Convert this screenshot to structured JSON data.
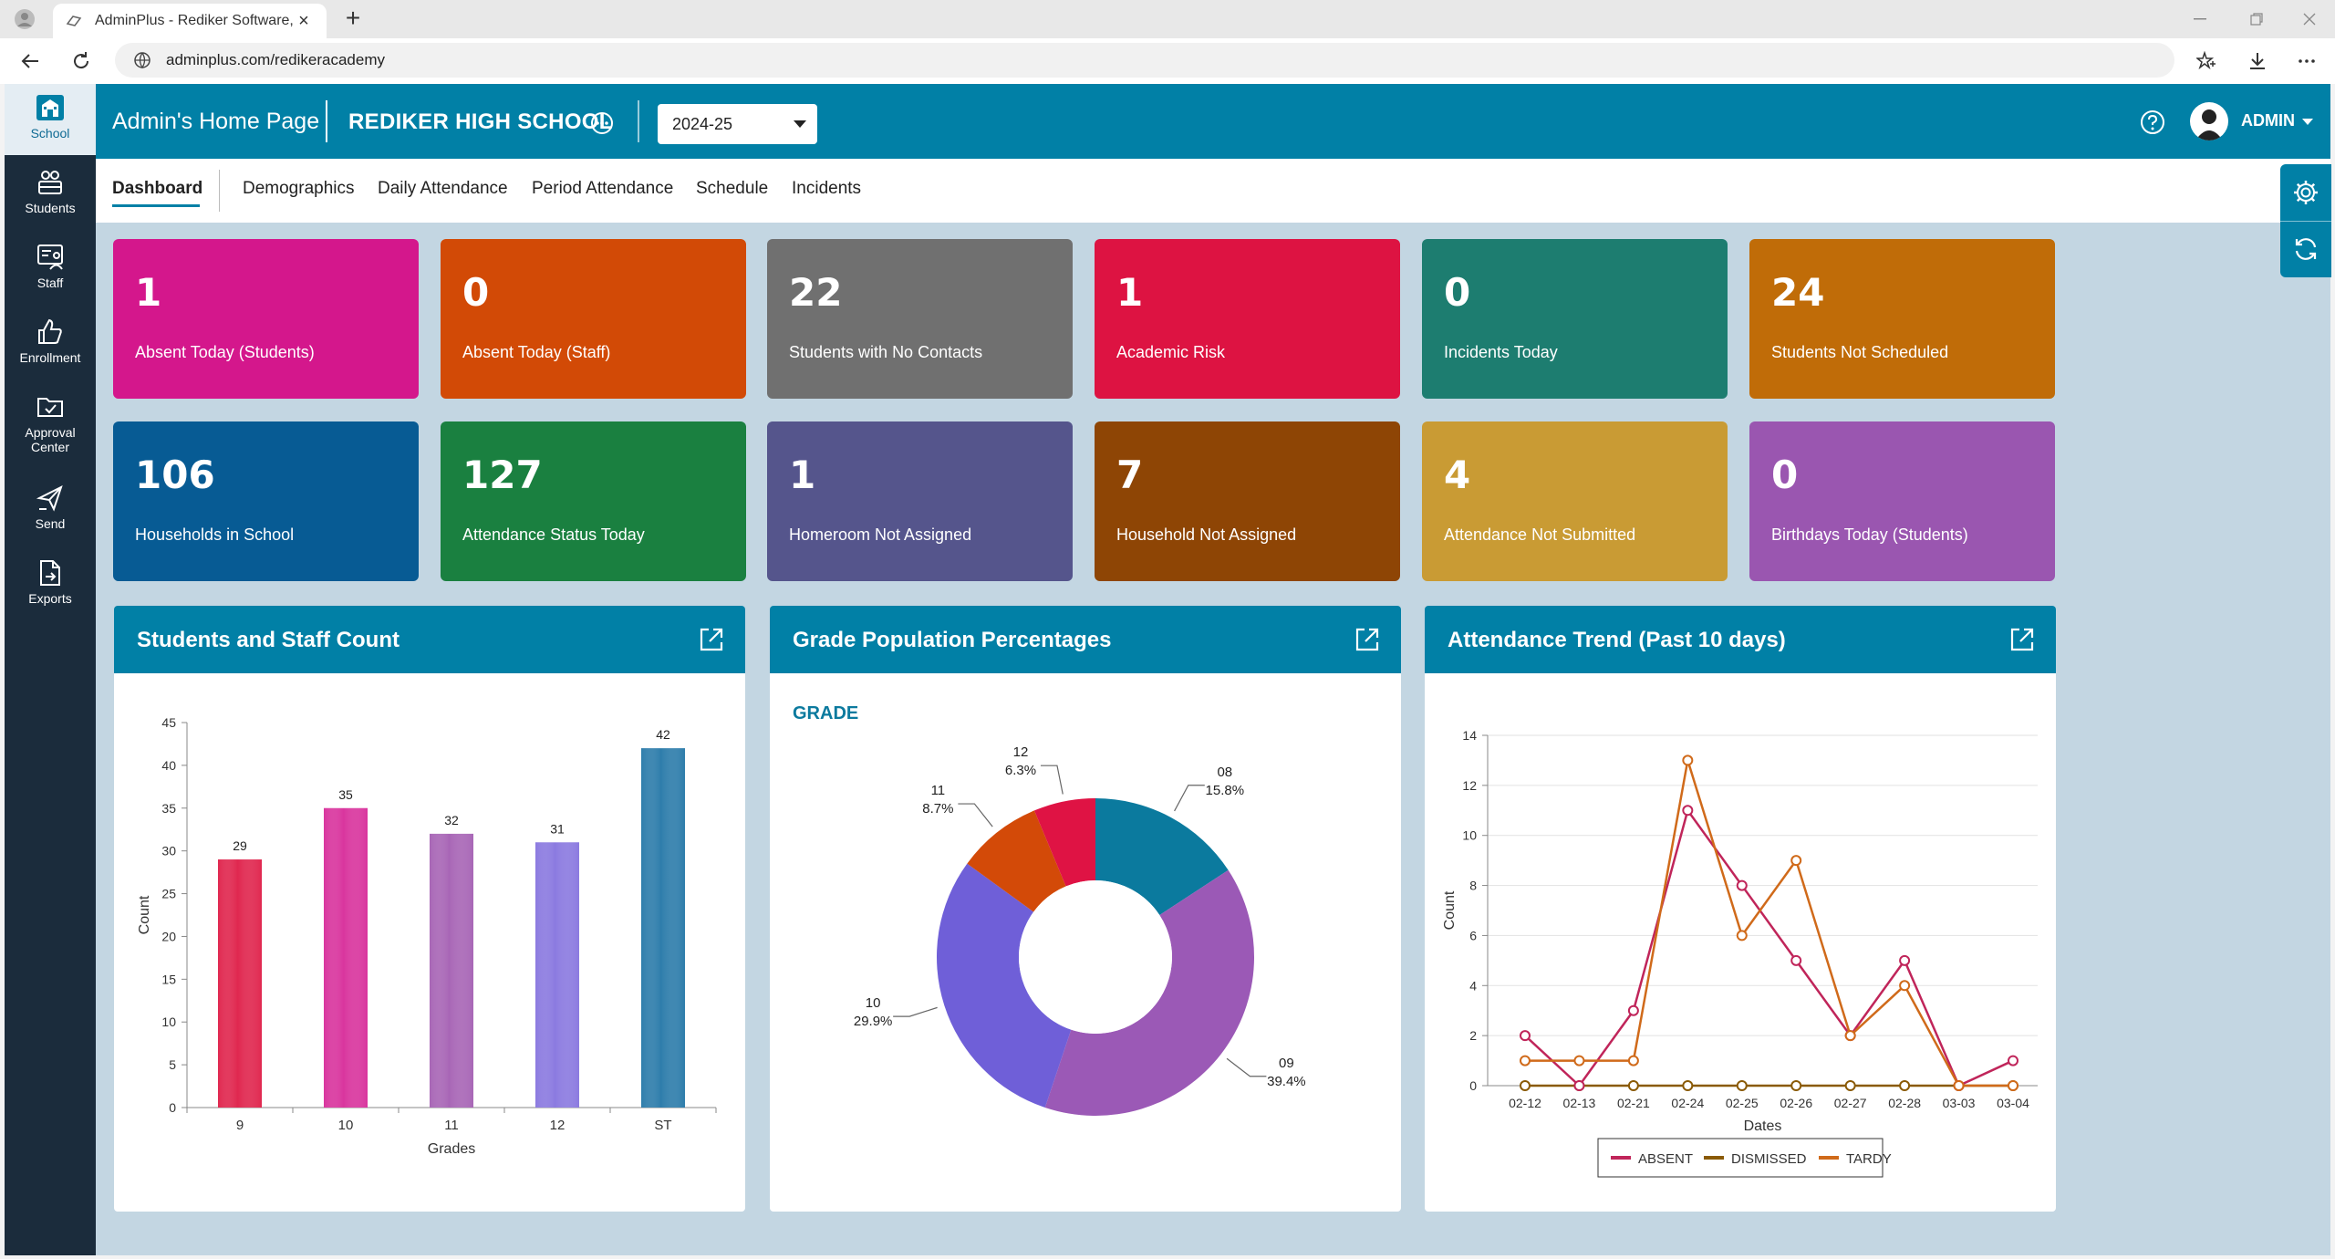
{
  "browser": {
    "tab_title": "AdminPlus - Rediker Software, Inc",
    "url": "adminplus.com/redikeracademy"
  },
  "left_nav": [
    {
      "id": "school",
      "label": "School"
    },
    {
      "id": "students",
      "label": "Students"
    },
    {
      "id": "staff",
      "label": "Staff"
    },
    {
      "id": "enrollment",
      "label": "Enrollment"
    },
    {
      "id": "approval",
      "label": "Approval Center"
    },
    {
      "id": "send",
      "label": "Send"
    },
    {
      "id": "exports",
      "label": "Exports"
    }
  ],
  "header": {
    "title": "Admin's Home Page",
    "school": "REDIKER HIGH SCHOOL",
    "year": "2024-25",
    "user": "ADMIN"
  },
  "tabs": [
    "Dashboard",
    "Demographics",
    "Daily Attendance",
    "Period Attendance",
    "Schedule",
    "Incidents"
  ],
  "tiles": [
    {
      "value": "1",
      "label": "Absent Today (Students)",
      "color": "#d4178c"
    },
    {
      "value": "0",
      "label": "Absent Today (Staff)",
      "color": "#d24a06"
    },
    {
      "value": "22",
      "label": "Students with No Contacts",
      "color": "#707070"
    },
    {
      "value": "1",
      "label": "Academic Risk",
      "color": "#dd1342"
    },
    {
      "value": "0",
      "label": "Incidents Today",
      "color": "#1d7d70"
    },
    {
      "value": "24",
      "label": "Students Not Scheduled",
      "color": "#c06c08"
    },
    {
      "value": "106",
      "label": "Households in School",
      "color": "#075b94"
    },
    {
      "value": "127",
      "label": "Attendance Status Today",
      "color": "#1a8040"
    },
    {
      "value": "1",
      "label": "Homeroom Not Assigned",
      "color": "#55558c"
    },
    {
      "value": "7",
      "label": "Household Not Assigned",
      "color": "#8e4505"
    },
    {
      "value": "4",
      "label": "Attendance Not Submitted",
      "color": "#c99b34"
    },
    {
      "value": "0",
      "label": "Birthdays Today (Students)",
      "color": "#9a56b0"
    }
  ],
  "panels": {
    "count": "Students and Staff Count",
    "grade": "Grade Population Percentages",
    "trend": "Attendance Trend (Past 10 days)"
  },
  "chart_data": [
    {
      "type": "bar",
      "title": "Students and Staff Count",
      "categories": [
        "9",
        "10",
        "11",
        "12",
        "ST"
      ],
      "values": [
        29,
        35,
        32,
        31,
        42
      ],
      "colors": [
        "#e0274f",
        "#d9359e",
        "#a866b6",
        "#8b7ae0",
        "#2e7dab"
      ],
      "xlabel": "Grades",
      "ylabel": "Count",
      "ylim": [
        0,
        45
      ],
      "yticks": [
        0,
        5,
        10,
        15,
        20,
        25,
        30,
        35,
        40,
        45
      ]
    },
    {
      "type": "pie",
      "title": "Grade Population Percentages",
      "subtitle": "GRADE",
      "donut": true,
      "slices": [
        {
          "label": "08",
          "pct": "15.8%",
          "value": 15.8,
          "color": "#0b7a9e"
        },
        {
          "label": "09",
          "pct": "39.4%",
          "value": 39.4,
          "color": "#9b59b6"
        },
        {
          "label": "10",
          "pct": "29.9%",
          "value": 29.9,
          "color": "#6f5fd8"
        },
        {
          "label": "11",
          "pct": "8.7%",
          "value": 8.7,
          "color": "#d34a08"
        },
        {
          "label": "12",
          "pct": "6.3%",
          "value": 6.3,
          "color": "#df1344"
        }
      ]
    },
    {
      "type": "line",
      "title": "Attendance Trend (Past 10 days)",
      "x": [
        "02-12",
        "02-13",
        "02-21",
        "02-24",
        "02-25",
        "02-26",
        "02-27",
        "02-28",
        "03-03",
        "03-04"
      ],
      "xlabel": "Dates",
      "ylabel": "Count",
      "ylim": [
        0,
        14
      ],
      "yticks": [
        0,
        2,
        4,
        6,
        8,
        10,
        12,
        14
      ],
      "legend": "bottom",
      "series": [
        {
          "name": "ABSENT",
          "values": [
            2,
            0,
            3,
            11,
            8,
            5,
            2,
            5,
            0,
            1
          ],
          "color": "#c0255a"
        },
        {
          "name": "DISMISSED",
          "values": [
            0,
            0,
            0,
            0,
            0,
            0,
            0,
            0,
            0,
            0
          ],
          "color": "#8a5a05"
        },
        {
          "name": "TARDY",
          "values": [
            1,
            1,
            1,
            13,
            6,
            9,
            2,
            4,
            0,
            0
          ],
          "color": "#d06a1a"
        }
      ]
    }
  ]
}
